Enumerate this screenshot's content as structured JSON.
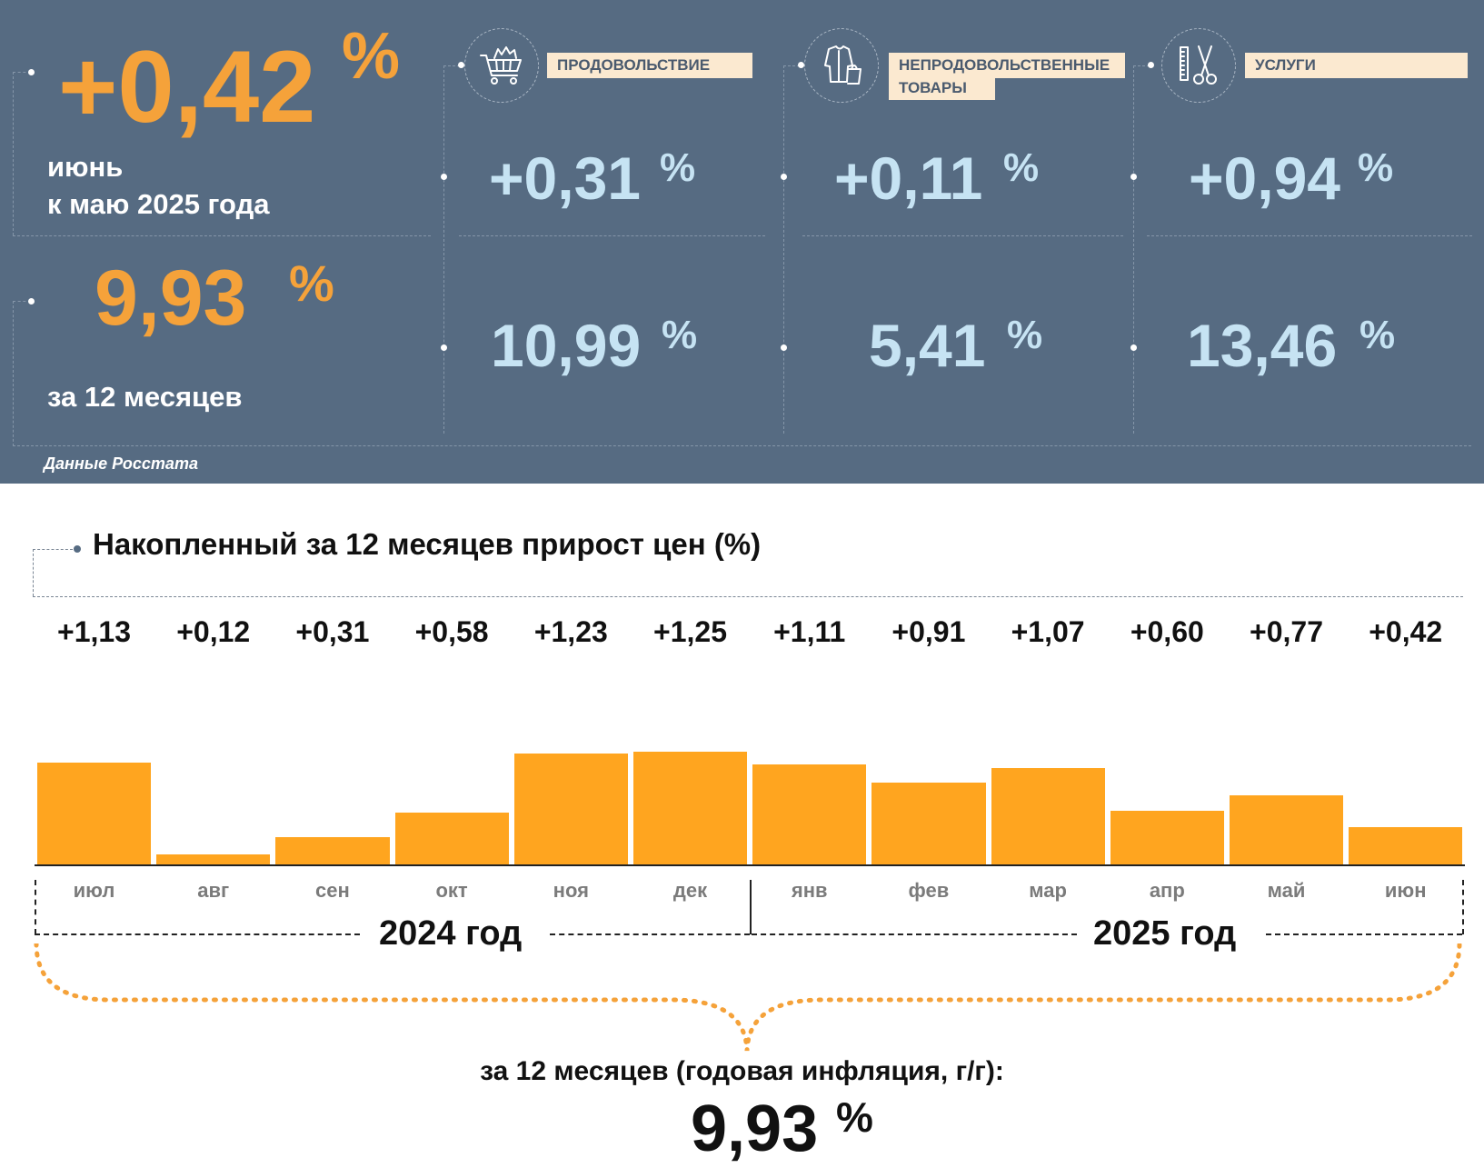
{
  "summary": {
    "monthly": {
      "value": "+0,42",
      "pct": "%",
      "label_line1": "июнь",
      "label_line2": "к маю 2025 года"
    },
    "annual": {
      "value": "9,93",
      "pct": "%",
      "label": "за 12 месяцев"
    },
    "source": "Данные Росстата"
  },
  "categories": [
    {
      "icon": "shopping-cart-icon",
      "tag": "ПРОДОВОЛЬСТВИЕ",
      "tag_line2": "",
      "monthly": "+0,31",
      "annual": "10,99",
      "pct": "%"
    },
    {
      "icon": "clothing-icon",
      "tag": "НЕПРОДОВОЛЬСТВЕННЫЕ",
      "tag_line2": "ТОВАРЫ",
      "monthly": "+0,11",
      "annual": "5,41",
      "pct": "%"
    },
    {
      "icon": "scissors-comb-icon",
      "tag": "УСЛУГИ",
      "tag_line2": "",
      "monthly": "+0,94",
      "annual": "13,46",
      "pct": "%"
    }
  ],
  "colors": {
    "panel": "#566b82",
    "accent": "#f5a23a",
    "bar": "#ffa51f",
    "light_blue": "#c6e3f3"
  },
  "chart_data": {
    "type": "bar",
    "title": "Накопленный за 12 месяцев прирост цен (%)",
    "categories": [
      "июл",
      "авг",
      "сен",
      "окт",
      "ноя",
      "дек",
      "янв",
      "фев",
      "мар",
      "апр",
      "май",
      "июн"
    ],
    "values": [
      1.13,
      0.12,
      0.31,
      0.58,
      1.23,
      1.25,
      1.11,
      0.91,
      1.07,
      0.6,
      0.77,
      0.42
    ],
    "value_labels": [
      "+1,13",
      "+0,12",
      "+0,31",
      "+0,58",
      "+1,23",
      "+1,25",
      "+1,11",
      "+0,91",
      "+1,07",
      "+0,60",
      "+0,77",
      "+0,42"
    ],
    "ylim": [
      0,
      1.4
    ],
    "years": [
      "2024 год",
      "2025 год"
    ],
    "annual_caption": "за 12 месяцев (годовая инфляция, г/г):",
    "annual_value": "9,93",
    "annual_pct": "%"
  }
}
